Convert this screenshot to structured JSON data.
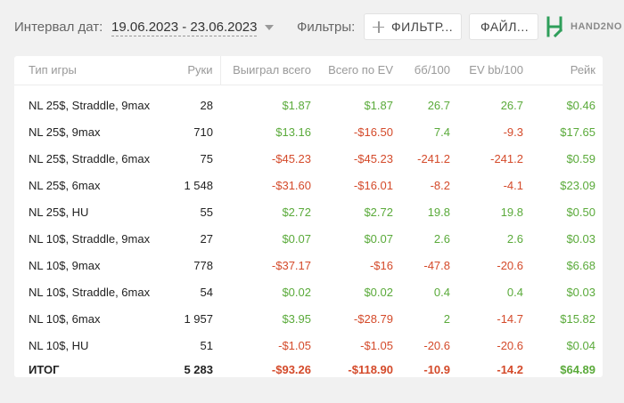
{
  "toolbar": {
    "date_label": "Интервал дат:",
    "date_value": "19.06.2023 - 23.06.2023",
    "filters_label": "Фильтры:",
    "filter_button": "ФИЛЬТР...",
    "file_button": "ФАЙЛ...",
    "logo_text": "HAND2NO"
  },
  "colors": {
    "positive": "#5aaa3a",
    "negative": "#d44a2a",
    "logo": "#2e9e5a"
  },
  "table": {
    "headers": [
      "Тип игры",
      "Руки",
      "Выиграл всего",
      "Всего по EV",
      "бб/100",
      "EV bb/100",
      "Рейк"
    ],
    "rows": [
      {
        "game": "NL 25$, Straddle, 9max",
        "hands": "28",
        "won": "$1.87",
        "ev": "$1.87",
        "bb100": "26.7",
        "evbb": "26.7",
        "rake": "$0.46"
      },
      {
        "game": "NL 25$, 9max",
        "hands": "710",
        "won": "$13.16",
        "ev": "-$16.50",
        "bb100": "7.4",
        "evbb": "-9.3",
        "rake": "$17.65"
      },
      {
        "game": "NL 25$, Straddle, 6max",
        "hands": "75",
        "won": "-$45.23",
        "ev": "-$45.23",
        "bb100": "-241.2",
        "evbb": "-241.2",
        "rake": "$0.59"
      },
      {
        "game": "NL 25$, 6max",
        "hands": "1 548",
        "won": "-$31.60",
        "ev": "-$16.01",
        "bb100": "-8.2",
        "evbb": "-4.1",
        "rake": "$23.09"
      },
      {
        "game": "NL 25$, HU",
        "hands": "55",
        "won": "$2.72",
        "ev": "$2.72",
        "bb100": "19.8",
        "evbb": "19.8",
        "rake": "$0.50"
      },
      {
        "game": "NL 10$, Straddle, 9max",
        "hands": "27",
        "won": "$0.07",
        "ev": "$0.07",
        "bb100": "2.6",
        "evbb": "2.6",
        "rake": "$0.03"
      },
      {
        "game": "NL 10$, 9max",
        "hands": "778",
        "won": "-$37.17",
        "ev": "-$16",
        "bb100": "-47.8",
        "evbb": "-20.6",
        "rake": "$6.68"
      },
      {
        "game": "NL 10$, Straddle, 6max",
        "hands": "54",
        "won": "$0.02",
        "ev": "$0.02",
        "bb100": "0.4",
        "evbb": "0.4",
        "rake": "$0.03"
      },
      {
        "game": "NL 10$, 6max",
        "hands": "1 957",
        "won": "$3.95",
        "ev": "-$28.79",
        "bb100": "2",
        "evbb": "-14.7",
        "rake": "$15.82"
      },
      {
        "game": "NL 10$, HU",
        "hands": "51",
        "won": "-$1.05",
        "ev": "-$1.05",
        "bb100": "-20.6",
        "evbb": "-20.6",
        "rake": "$0.04"
      }
    ],
    "total": {
      "game": "ИТОГ",
      "hands": "5 283",
      "won": "-$93.26",
      "ev": "-$118.90",
      "bb100": "-10.9",
      "evbb": "-14.2",
      "rake": "$64.89"
    }
  }
}
